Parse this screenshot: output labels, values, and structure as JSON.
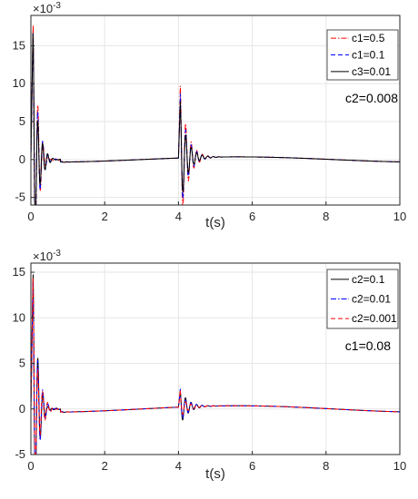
{
  "chart_data": [
    {
      "type": "line",
      "xlabel": "t(s)",
      "exponent": "×10",
      "exponent_power": "-3",
      "xlim": [
        0,
        10
      ],
      "ylim": [
        -6,
        19
      ],
      "xticks": [
        0,
        2,
        4,
        6,
        8,
        10
      ],
      "yticks": [
        -5,
        0,
        5,
        10,
        15
      ],
      "grid": true,
      "legend_position": "top-right",
      "annotation": "c2=0.008",
      "series": [
        {
          "name": "c1=0.5",
          "color": "#ff0000",
          "style": "dashdot",
          "peak": 18,
          "neg": -5.4,
          "mid_peak": 9.5,
          "mid_neg": -4.2
        },
        {
          "name": "c1=0.1",
          "color": "#0000ff",
          "style": "dashed",
          "peak": 18,
          "neg": -4.5,
          "mid_peak": 8.5,
          "mid_neg": -3.8
        },
        {
          "name": "c3=0.01",
          "color": "#000000",
          "style": "solid",
          "peak": 18,
          "neg": -3.5,
          "mid_peak": 7.5,
          "mid_neg": -3.0
        }
      ]
    },
    {
      "type": "line",
      "xlabel": "t(s)",
      "exponent": "×10",
      "exponent_power": "-3",
      "xlim": [
        0,
        10
      ],
      "ylim": [
        -5,
        16
      ],
      "xticks": [
        0,
        2,
        4,
        6,
        8,
        10
      ],
      "yticks": [
        -5,
        0,
        5,
        10,
        15
      ],
      "grid": true,
      "legend_position": "top-right",
      "annotation": "c1=0.08",
      "series": [
        {
          "name": "c2=0.1",
          "color": "#000000",
          "style": "solid",
          "peak": 15,
          "neg": -3.0,
          "mid_peak": 1.8,
          "mid_neg": -2.4
        },
        {
          "name": "c2=0.01",
          "color": "#0000ff",
          "style": "dashdot",
          "peak": 15,
          "neg": -4.3,
          "mid_peak": 2.0,
          "mid_neg": -2.6
        },
        {
          "name": "c2=0.001",
          "color": "#ff0000",
          "style": "dashed",
          "peak": 15.5,
          "neg": -3.6,
          "mid_peak": 1.9,
          "mid_neg": -2.5
        }
      ]
    }
  ]
}
